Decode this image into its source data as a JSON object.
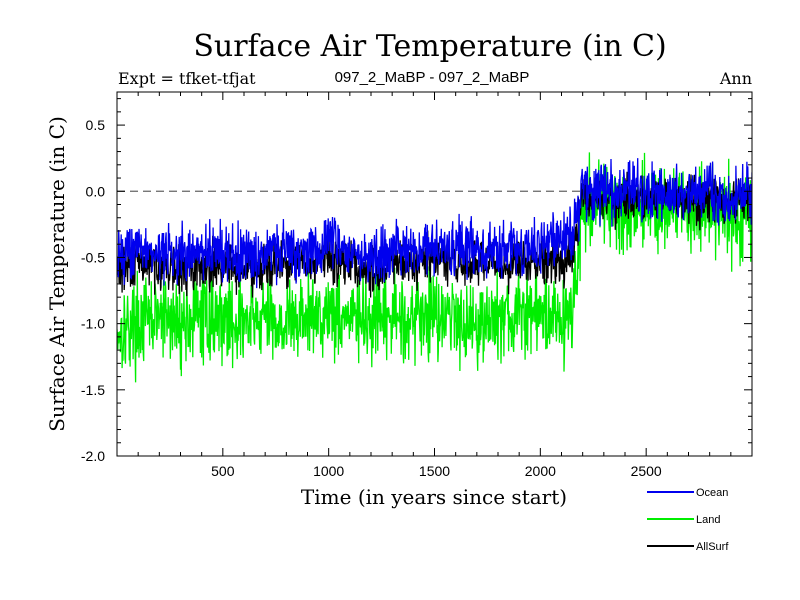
{
  "chart_data": {
    "type": "line",
    "title": "Surface Air Temperature (in C)",
    "subtitle_left": "Expt = tfket-tfjat",
    "subtitle_center": "097_2_MaBP - 097_2_MaBP",
    "subtitle_right": "Ann",
    "xlabel": "Time (in years since start)",
    "ylabel": "Surface Air Temperature (in C)",
    "xlim": [
      0,
      3000
    ],
    "ylim": [
      -2.0,
      0.75
    ],
    "xticks": [
      500,
      1000,
      1500,
      2000,
      2500
    ],
    "xtick_labels": [
      "500",
      "1000",
      "1500",
      "2000",
      "2500"
    ],
    "yticks": [
      0.5,
      0.0,
      -0.5,
      -1.0,
      -1.5,
      -2.0
    ],
    "ytick_labels": [
      "0.5",
      "0.0",
      "-0.5",
      "-1.0",
      "-1.5",
      "-2.0"
    ],
    "reference_line": {
      "y": 0.0,
      "style": "dashed"
    },
    "legend_position": "below-right",
    "series": [
      {
        "name": "Land",
        "color": "#00ee00",
        "x": [
          0,
          100,
          200,
          300,
          400,
          500,
          600,
          700,
          800,
          900,
          1000,
          1100,
          1200,
          1300,
          1400,
          1500,
          1600,
          1700,
          1800,
          1900,
          2000,
          2100,
          2150,
          2200,
          2300,
          2400,
          2500,
          2600,
          2700,
          2800,
          2900,
          3000
        ],
        "values": [
          -1.05,
          -1.0,
          -0.95,
          -1.0,
          -0.95,
          -0.95,
          -1.0,
          -0.95,
          -1.0,
          -0.95,
          -0.9,
          -0.95,
          -1.0,
          -0.95,
          -0.95,
          -0.9,
          -0.95,
          -1.0,
          -0.95,
          -0.95,
          -0.9,
          -0.95,
          -0.95,
          -0.1,
          -0.1,
          -0.15,
          -0.1,
          -0.15,
          -0.15,
          -0.1,
          -0.2,
          -0.15
        ]
      },
      {
        "name": "AllSurf",
        "color": "#000000",
        "x": [
          0,
          100,
          200,
          300,
          400,
          500,
          600,
          700,
          800,
          900,
          1000,
          1100,
          1200,
          1300,
          1400,
          1500,
          1600,
          1700,
          1800,
          1900,
          2000,
          2100,
          2150,
          2200,
          2300,
          2400,
          2500,
          2600,
          2700,
          2800,
          2900,
          3000
        ],
        "values": [
          -0.6,
          -0.55,
          -0.55,
          -0.6,
          -0.55,
          -0.55,
          -0.6,
          -0.55,
          -0.55,
          -0.55,
          -0.5,
          -0.55,
          -0.6,
          -0.55,
          -0.55,
          -0.5,
          -0.55,
          -0.55,
          -0.55,
          -0.55,
          -0.5,
          -0.5,
          -0.5,
          -0.05,
          -0.05,
          -0.05,
          -0.05,
          -0.05,
          -0.05,
          -0.05,
          -0.1,
          -0.05
        ]
      },
      {
        "name": "Ocean",
        "color": "#0000ee",
        "x": [
          0,
          100,
          200,
          300,
          400,
          500,
          600,
          700,
          800,
          900,
          1000,
          1100,
          1200,
          1300,
          1400,
          1500,
          1600,
          1700,
          1800,
          1900,
          2000,
          2100,
          2150,
          2200,
          2300,
          2400,
          2500,
          2600,
          2700,
          2800,
          2900,
          3000
        ],
        "values": [
          -0.45,
          -0.45,
          -0.45,
          -0.5,
          -0.45,
          -0.45,
          -0.5,
          -0.45,
          -0.45,
          -0.45,
          -0.4,
          -0.45,
          -0.5,
          -0.45,
          -0.45,
          -0.4,
          -0.45,
          -0.45,
          -0.45,
          -0.45,
          -0.4,
          -0.35,
          -0.35,
          0.0,
          0.0,
          0.0,
          0.0,
          -0.05,
          0.0,
          0.0,
          -0.05,
          0.0
        ]
      }
    ],
    "legend_order": [
      "Ocean",
      "Land",
      "AllSurf"
    ]
  }
}
